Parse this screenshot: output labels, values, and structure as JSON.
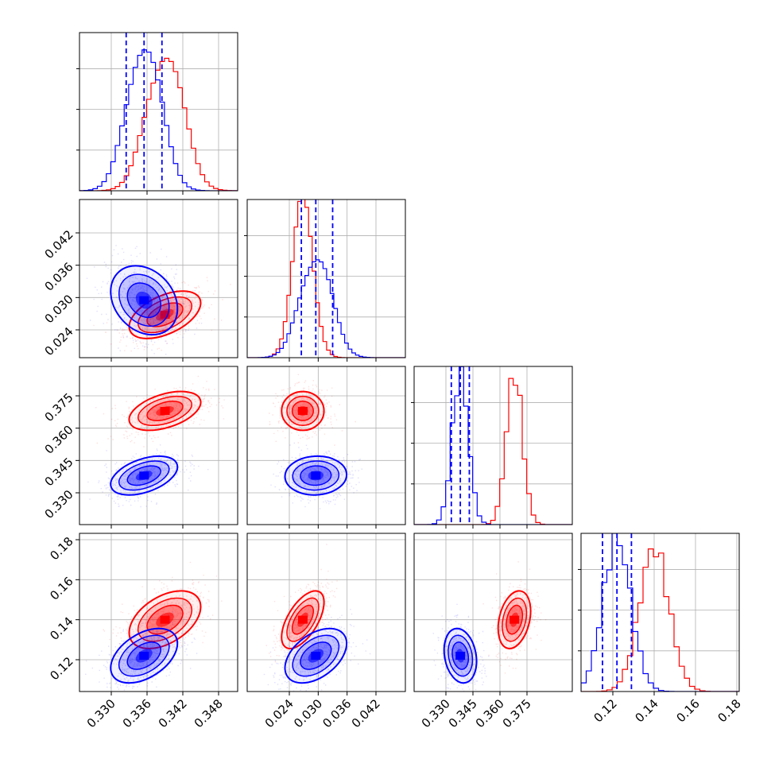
{
  "chart_data": {
    "type": "corner",
    "grid": true,
    "colors": {
      "series_a": "#0000ff",
      "series_b": "#ff0000",
      "quantile_lines": "#0000ff"
    },
    "parameters": [
      {
        "ticks": [
          "0.330",
          "0.336",
          "0.342",
          "0.348"
        ],
        "a": {
          "mean": 0.3355,
          "sd": 0.0028,
          "quantiles": [
            0.3325,
            0.3355,
            0.3385
          ]
        },
        "b": {
          "mean": 0.339,
          "sd": 0.003
        }
      },
      {
        "ticks": [
          "0.024",
          "0.030",
          "0.036",
          "0.042"
        ],
        "a": {
          "mean": 0.0295,
          "sd": 0.0032,
          "quantiles": [
            0.0265,
            0.0295,
            0.033
          ]
        },
        "b": {
          "mean": 0.0268,
          "sd": 0.0022
        }
      },
      {
        "ticks": [
          "0.330",
          "0.345",
          "0.360",
          "0.375"
        ],
        "a": {
          "mean": 0.338,
          "sd": 0.0045,
          "quantiles": [
            0.333,
            0.338,
            0.343
          ]
        },
        "b": {
          "mean": 0.368,
          "sd": 0.0045
        }
      },
      {
        "ticks": [
          "0.12",
          "0.14",
          "0.16",
          "0.18"
        ],
        "a": {
          "mean": 0.122,
          "sd": 0.0068,
          "quantiles": [
            0.115,
            0.122,
            0.129
          ]
        },
        "b": {
          "mean": 0.14,
          "sd": 0.0072
        }
      }
    ],
    "correlations": {
      "a": {
        "1-0": -0.25,
        "2-0": 0.45,
        "2-1": 0.05,
        "3-0": 0.45,
        "3-1": 0.45,
        "3-2": -0.2
      },
      "b": {
        "1-0": 0.5,
        "2-0": 0.45,
        "2-1": 0.0,
        "3-0": 0.45,
        "3-1": 0.6,
        "3-2": 0.3
      }
    }
  }
}
